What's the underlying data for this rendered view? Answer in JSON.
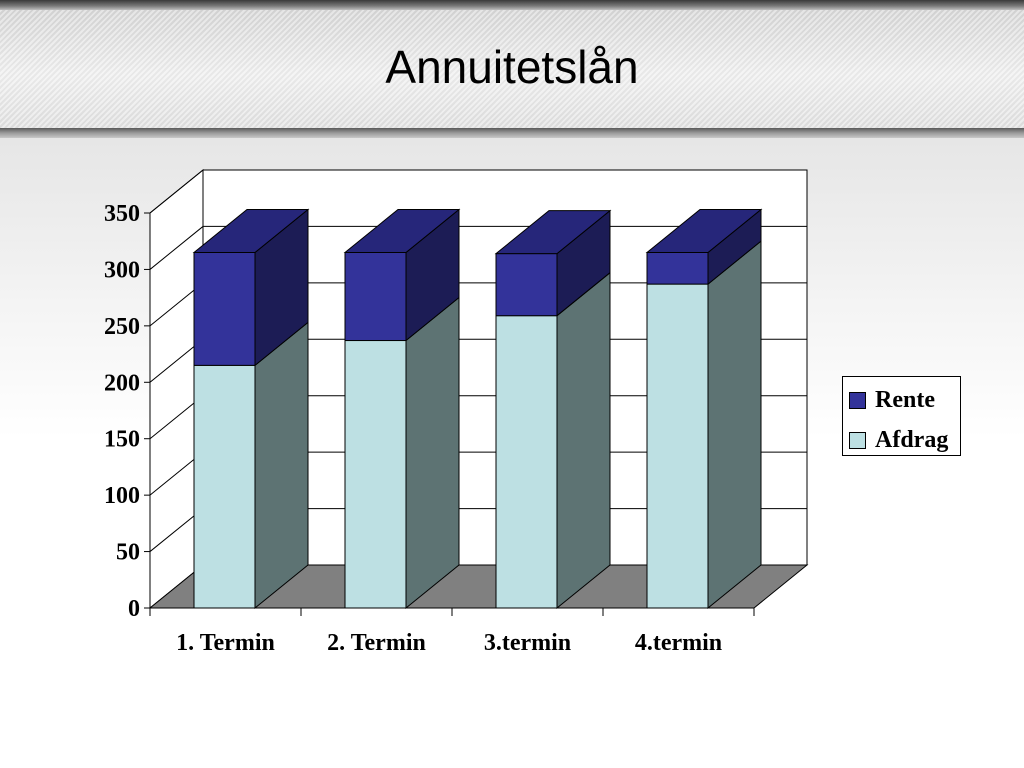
{
  "slide": {
    "title": "Annuitetslån"
  },
  "colors": {
    "rente_front": "#33339a",
    "rente_top": "#26267a",
    "rente_side": "#1c1c55",
    "afdrag_front": "#bde0e3",
    "afdrag_side": "#5d7373",
    "floor": "#808080"
  },
  "chart_data": {
    "type": "bar",
    "stacked": true,
    "three_d": true,
    "title": "",
    "xlabel": "",
    "ylabel": "",
    "categories": [
      "1. Termin",
      "2. Termin",
      "3.termin",
      "4.termin"
    ],
    "series": [
      {
        "name": "Afdrag",
        "values": [
          215,
          237,
          259,
          287
        ],
        "color": "#bde0e3"
      },
      {
        "name": "Rente",
        "values": [
          100,
          78,
          55,
          28
        ],
        "color": "#33339a"
      }
    ],
    "ylim": [
      0,
      350
    ],
    "yticks": [
      "0",
      "50",
      "100",
      "150",
      "200",
      "250",
      "300",
      "350"
    ],
    "grid": true,
    "legend": {
      "position": "right",
      "items": [
        {
          "label": "Rente",
          "color": "#33339a"
        },
        {
          "label": "Afdrag",
          "color": "#bde0e3"
        }
      ]
    }
  }
}
